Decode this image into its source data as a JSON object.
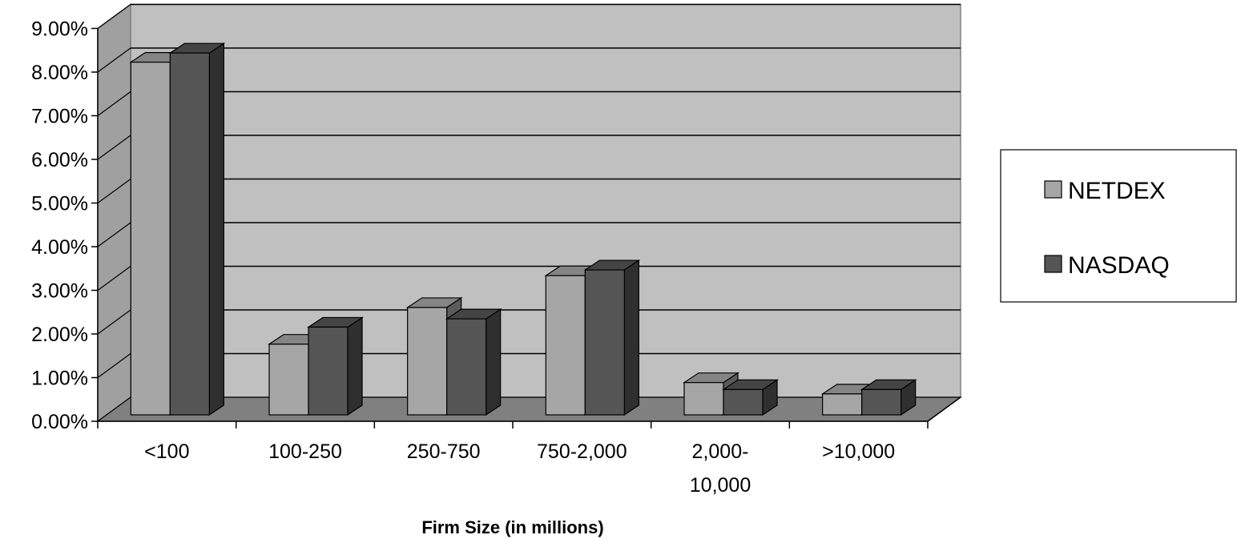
{
  "chart_data": {
    "type": "bar",
    "style": "3d-clustered-column",
    "categories": [
      [
        "<100"
      ],
      [
        "100-250"
      ],
      [
        "250-750"
      ],
      [
        "750-2,000"
      ],
      [
        "2,000-",
        "10,000"
      ],
      [
        ">10,000"
      ]
    ],
    "series": [
      {
        "name": "NETDEX",
        "color": "#a6a6a6",
        "values": [
          0.0808,
          0.0162,
          0.0246,
          0.0319,
          0.0074,
          0.0048
        ]
      },
      {
        "name": "NASDAQ",
        "color": "#555555",
        "values": [
          0.0829,
          0.0201,
          0.022,
          0.0332,
          0.0058,
          0.0058
        ]
      }
    ],
    "yticks": [
      "0.00%",
      "1.00%",
      "2.00%",
      "3.00%",
      "4.00%",
      "5.00%",
      "6.00%",
      "7.00%",
      "8.00%",
      "9.00%"
    ],
    "ylim": [
      0,
      0.09
    ],
    "xlabel": "Firm Size (in millions)",
    "ylabel": "",
    "title": "",
    "grid": true,
    "legend": "right",
    "colors": {
      "wall": "#c0c0c0",
      "floor": "#808080",
      "side_wall": "#a0a0a0"
    }
  }
}
